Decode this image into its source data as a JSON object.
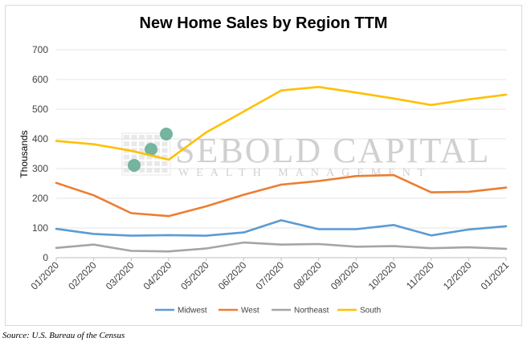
{
  "title": "New Home Sales by Region TTM",
  "source": "Source: U.S. Bureau of the Census",
  "watermark": {
    "line1": "SEBOLD CAPITAL",
    "line2": "WEALTH MANAGEMENT"
  },
  "chart_data": {
    "type": "line",
    "title": "New Home Sales by Region TTM",
    "xlabel": "",
    "ylabel": "Thousands",
    "ylim": [
      0,
      700
    ],
    "yticks": [
      0,
      100,
      200,
      300,
      400,
      500,
      600,
      700
    ],
    "grid": true,
    "legend_position": "bottom",
    "categories": [
      "01/2020",
      "02/2020",
      "03/2020",
      "04/2020",
      "05/2020",
      "06/2020",
      "07/2020",
      "08/2020",
      "09/2020",
      "10/2020",
      "11/2020",
      "12/2020",
      "01/2021"
    ],
    "series": [
      {
        "name": "Midwest",
        "color": "#5b9bd5",
        "values": [
          97,
          80,
          74,
          76,
          74,
          85,
          126,
          96,
          96,
          110,
          75,
          95,
          106
        ]
      },
      {
        "name": "West",
        "color": "#ed7d31",
        "values": [
          252,
          210,
          150,
          140,
          173,
          212,
          246,
          258,
          275,
          278,
          220,
          222,
          236
        ]
      },
      {
        "name": "Northeast",
        "color": "#a5a5a5",
        "values": [
          33,
          44,
          23,
          21,
          31,
          51,
          44,
          46,
          37,
          39,
          32,
          35,
          30
        ]
      },
      {
        "name": "South",
        "color": "#ffc000",
        "values": [
          393,
          382,
          360,
          330,
          422,
          492,
          563,
          575,
          556,
          536,
          514,
          533,
          549
        ]
      }
    ]
  }
}
